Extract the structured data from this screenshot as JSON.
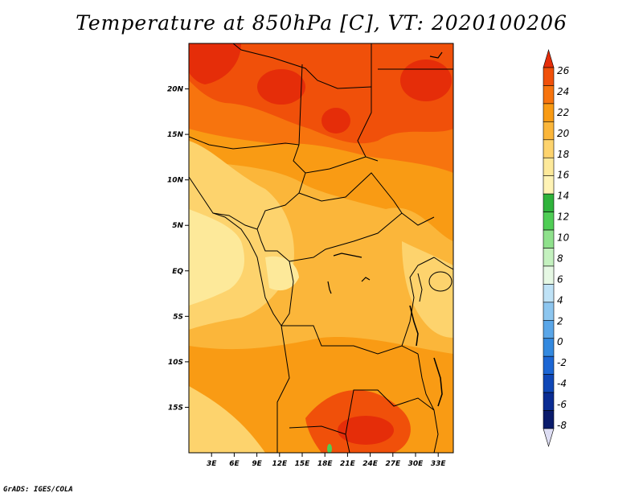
{
  "title": "Temperature at 850hPa [C], VT: 2020100206",
  "credit": "GrADS: IGES/COLA",
  "map": {
    "lon_range": [
      0,
      35
    ],
    "lat_range": [
      -20,
      25
    ],
    "lon_ticks": [
      "3E",
      "6E",
      "9E",
      "12E",
      "15E",
      "18E",
      "21E",
      "24E",
      "27E",
      "30E",
      "33E"
    ],
    "lat_ticks": [
      "20N",
      "15N",
      "10N",
      "5N",
      "EQ",
      "5S",
      "10S",
      "15S"
    ]
  },
  "colorbar": {
    "labels": [
      "26",
      "24",
      "22",
      "20",
      "18",
      "16",
      "14",
      "12",
      "10",
      "8",
      "6",
      "4",
      "2",
      "0",
      "-2",
      "-4",
      "-6",
      "-8"
    ],
    "colors": [
      "#e52d09",
      "#f0500a",
      "#f7740e",
      "#f99b14",
      "#fbb63a",
      "#fdd36d",
      "#fde99a",
      "#fff3b5",
      "#2fb33b",
      "#4fcd55",
      "#8fe18c",
      "#c4f1bf",
      "#e6f8e4",
      "#bfe2f6",
      "#8dc6ef",
      "#5aa6e8",
      "#3389df",
      "#1c66d4",
      "#0f47b7",
      "#0a2c93",
      "#0a1b6b",
      "#ddddf3"
    ]
  }
}
